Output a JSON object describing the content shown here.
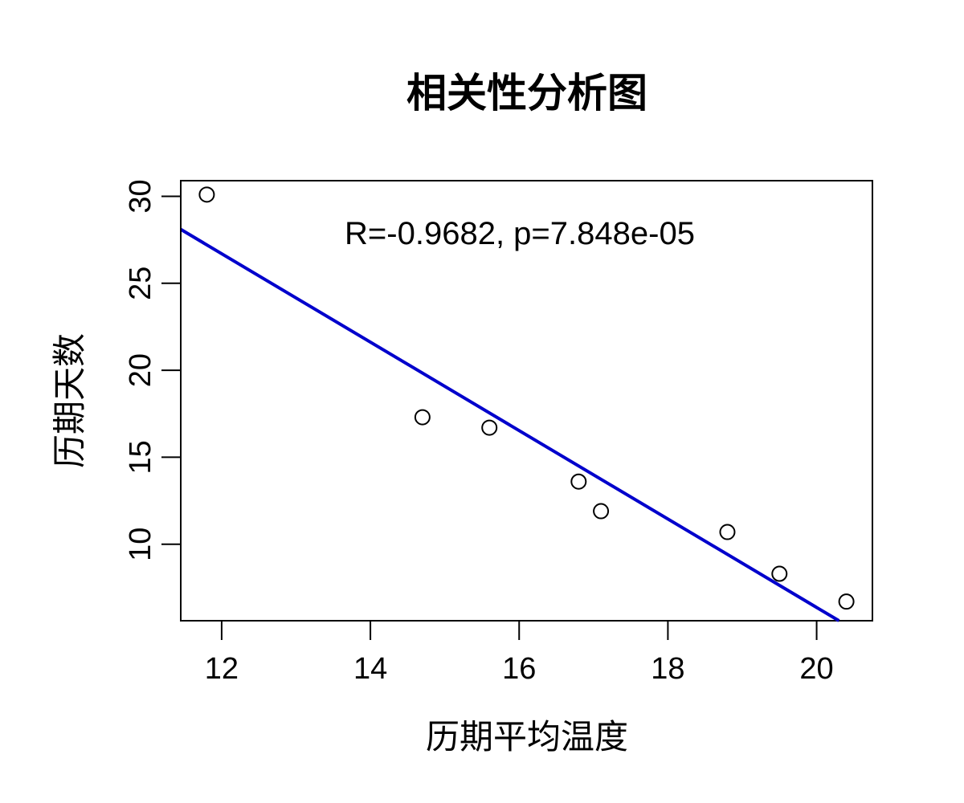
{
  "chart_data": {
    "type": "scatter",
    "title": "相关性分析图",
    "xlabel": "历期平均温度",
    "ylabel": "历期天数",
    "annotation": "R=-0.9682, p=7.848e-05",
    "xlim": [
      11.45,
      20.75
    ],
    "ylim": [
      5.6,
      30.9
    ],
    "xticks": [
      12,
      14,
      16,
      18,
      20
    ],
    "yticks": [
      10,
      15,
      20,
      25,
      30
    ],
    "grid": false,
    "points": [
      {
        "x": 11.8,
        "y": 30.1
      },
      {
        "x": 14.7,
        "y": 17.3
      },
      {
        "x": 15.6,
        "y": 16.7
      },
      {
        "x": 16.8,
        "y": 13.6
      },
      {
        "x": 17.1,
        "y": 11.9
      },
      {
        "x": 18.8,
        "y": 10.7
      },
      {
        "x": 19.5,
        "y": 8.3
      },
      {
        "x": 20.4,
        "y": 6.7
      }
    ],
    "fit_line": {
      "color": "#0000cc",
      "x": [
        11.45,
        20.3
      ],
      "y": [
        28.1,
        5.6
      ]
    },
    "point_color": "#000000"
  }
}
